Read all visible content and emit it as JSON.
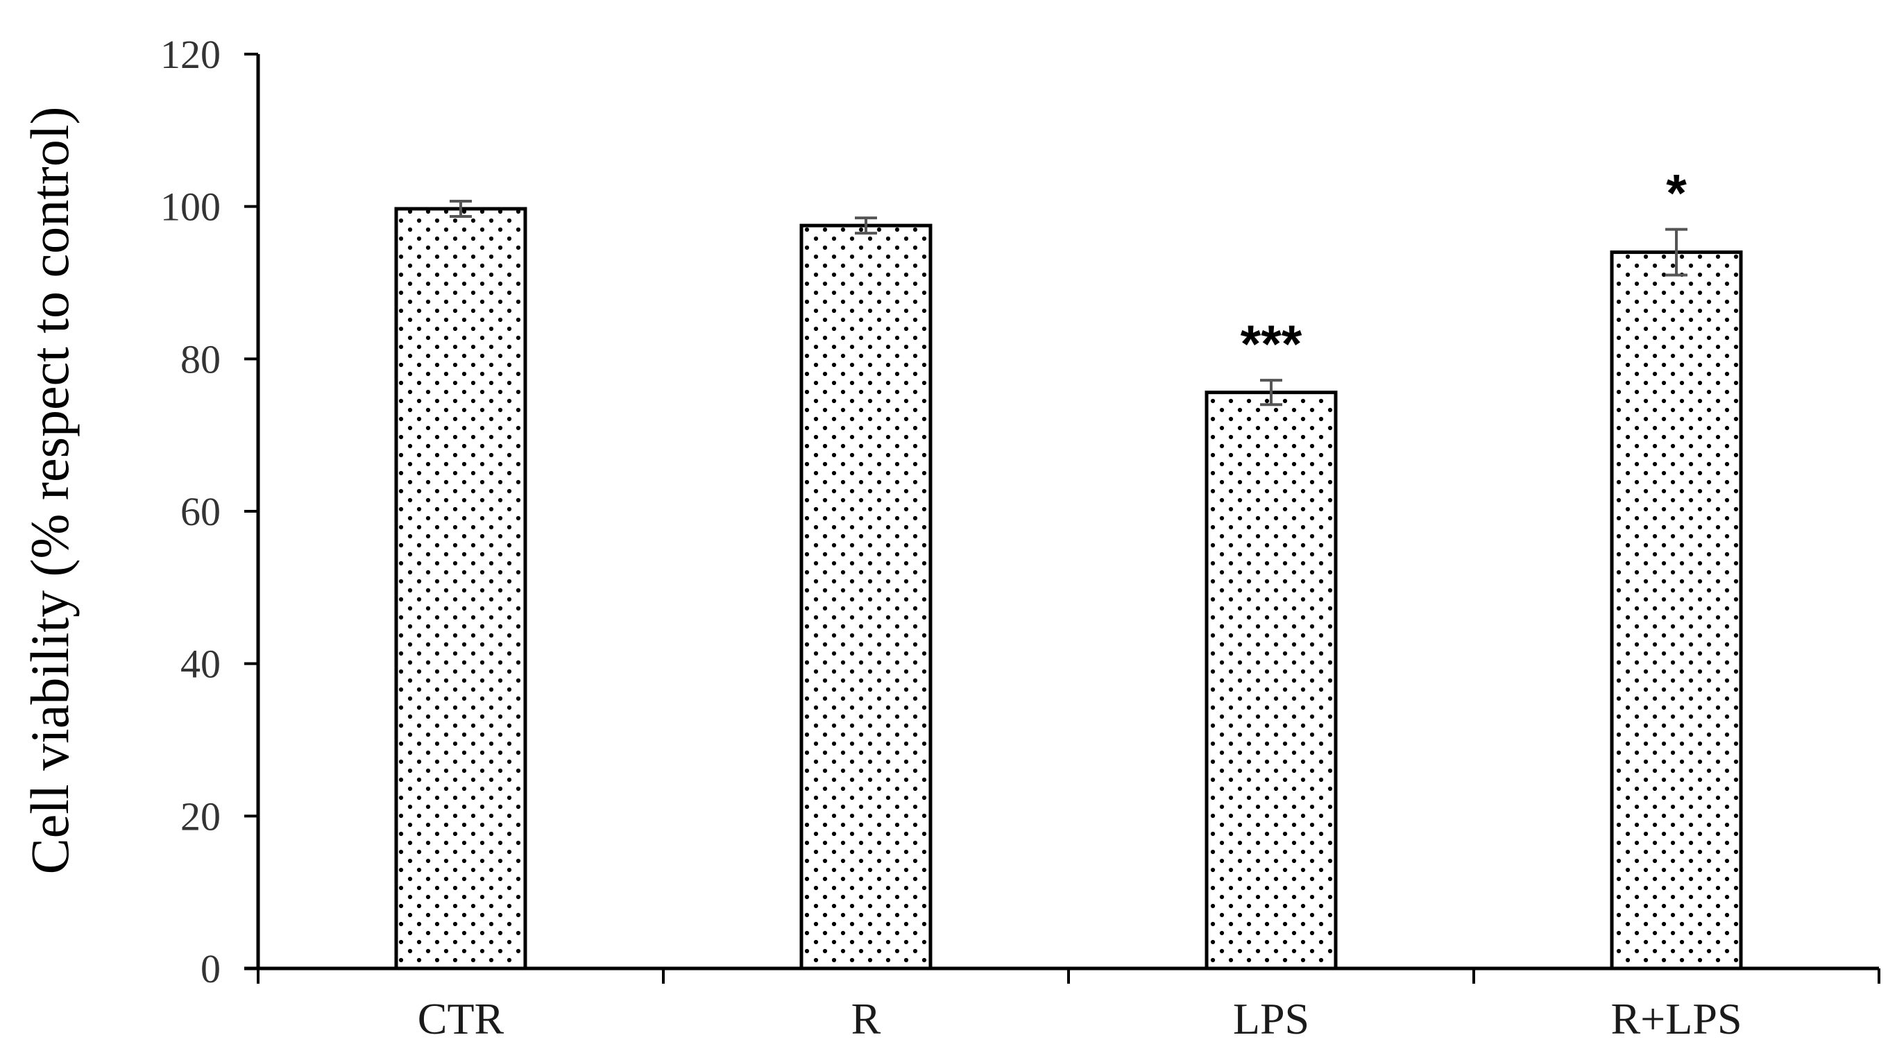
{
  "chart_data": {
    "type": "bar",
    "title": "",
    "xlabel": "",
    "ylabel": "Cell viability (% respect to control)",
    "categories": [
      "CTR",
      "R",
      "LPS",
      "R+LPS"
    ],
    "values": [
      99.7,
      97.5,
      75.6,
      94.0
    ],
    "errors": [
      1.0,
      1.0,
      1.6,
      3.0
    ],
    "annotations": [
      "",
      "",
      "***",
      "*"
    ],
    "ylim": [
      0,
      120
    ],
    "yticks": [
      0,
      20,
      40,
      60,
      80,
      100,
      120
    ],
    "ytick_labels": [
      "0",
      "20",
      "40",
      "60",
      "80",
      "100",
      "120"
    ],
    "grid": false,
    "legend": "none",
    "bar_fill": "dotted-white",
    "colors": {
      "bar_edge": "#000000",
      "dot": "#000000",
      "axis": "#000000",
      "error_bar": "#555555"
    }
  }
}
